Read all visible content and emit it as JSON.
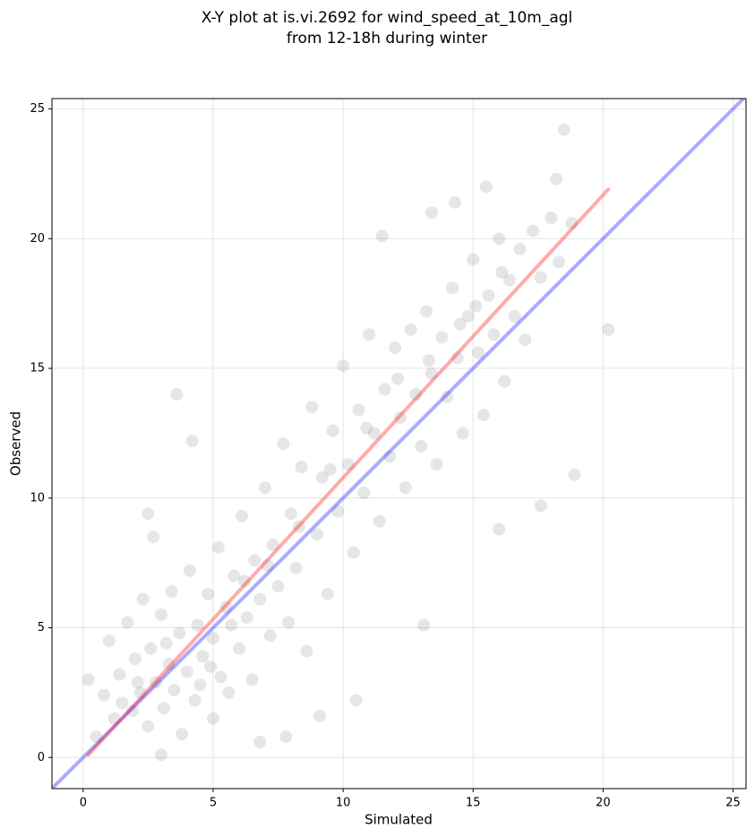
{
  "chart_data": {
    "type": "scatter",
    "title": [
      "X-Y plot at is.vi.2692 for wind_speed_at_10m_agl",
      "from 12-18h during winter"
    ],
    "x_label": "Simulated",
    "y_label": "Observed",
    "xlim": [
      -1.2,
      25.5
    ],
    "ylim": [
      -1.2,
      25.4
    ],
    "xticks": [
      0,
      5,
      10,
      15,
      20,
      25
    ],
    "yticks": [
      0,
      5,
      10,
      15,
      20,
      25
    ],
    "grid": true,
    "series": [
      {
        "color": "#555555",
        "x": [
          0.5,
          0.8,
          1,
          1.2,
          1.4,
          1.5,
          1.7,
          1.9,
          2,
          2.2,
          2.3,
          2.5,
          2.6,
          2.8,
          3,
          3.1,
          3.3,
          3.4,
          3.5,
          3.7,
          3.8,
          4,
          4.1,
          4.3,
          4.4,
          4.6,
          4.8,
          5,
          5,
          5.2,
          5.3,
          5.5,
          5.6,
          5.8,
          6,
          6.1,
          6.3,
          6.5,
          6.6,
          6.8,
          7,
          7.2,
          7.3,
          7.5,
          7.7,
          7.9,
          8,
          8.2,
          8.4,
          8.6,
          8.8,
          9,
          9.2,
          9.4,
          9.6,
          9.8,
          10,
          10.2,
          10.4,
          10.6,
          10.8,
          11,
          11.2,
          11.4,
          11.6,
          11.8,
          12,
          12.2,
          12.4,
          12.6,
          12.8,
          13,
          13.2,
          13.4,
          13.6,
          13.8,
          14,
          14.2,
          14.4,
          14.6,
          14.8,
          15,
          15.2,
          15.4,
          15.6,
          15.8,
          16,
          16.2,
          16.4,
          16.6,
          16.8,
          17,
          17.3,
          17.6,
          18,
          18.3,
          18.8,
          3.2,
          4.5,
          5.7,
          6.2,
          2.1,
          4.9,
          7.1,
          8.3,
          9.5,
          10.9,
          12.1,
          13.3,
          14.5,
          15.1,
          16.1,
          3.6,
          4.2,
          18.5,
          20.2,
          18.9,
          17.6,
          16,
          13.1,
          10.5,
          9.1,
          0.2,
          2.5,
          2.7,
          11.5,
          15.5,
          18.2,
          13.4,
          14.3,
          7.8,
          6.8,
          3
        ],
        "values": [
          0.8,
          2.4,
          4.5,
          1.5,
          3.2,
          2.1,
          5.2,
          1.8,
          3.8,
          2.5,
          6.1,
          1.2,
          4.2,
          2.9,
          5.5,
          1.9,
          3.6,
          6.4,
          2.6,
          4.8,
          0.9,
          3.3,
          7.2,
          2.2,
          5.1,
          3.9,
          6.3,
          1.5,
          4.6,
          8.1,
          3.1,
          5.8,
          2.5,
          7,
          4.2,
          9.3,
          5.4,
          3,
          7.6,
          6.1,
          10.4,
          4.7,
          8.2,
          6.6,
          12.1,
          5.2,
          9.4,
          7.3,
          11.2,
          4.1,
          13.5,
          8.6,
          10.8,
          6.3,
          12.6,
          9.5,
          15.1,
          11.3,
          7.9,
          13.4,
          10.2,
          16.3,
          12.5,
          9.1,
          14.2,
          11.6,
          15.8,
          13.1,
          10.4,
          16.5,
          14,
          12,
          17.2,
          14.8,
          11.3,
          16.2,
          13.9,
          18.1,
          15.4,
          12.5,
          17,
          19.2,
          15.6,
          13.2,
          17.8,
          16.3,
          20,
          14.5,
          18.4,
          17,
          19.6,
          16.1,
          20.3,
          18.5,
          20.8,
          19.1,
          20.6,
          4.4,
          2.8,
          5.1,
          6.8,
          2.9,
          3.5,
          7.4,
          8.9,
          11.1,
          12.7,
          14.6,
          15.3,
          16.7,
          17.4,
          18.7,
          14,
          12.2,
          24.2,
          16.5,
          10.9,
          9.7,
          8.8,
          5.1,
          2.2,
          1.6,
          3,
          9.4,
          8.5,
          20.1,
          22,
          22.3,
          21,
          21.4,
          0.8,
          0.6,
          0.1
        ]
      }
    ],
    "lines": [
      {
        "color": "#0000ff",
        "x": [
          -1.2,
          25.5
        ],
        "values": [
          -1.2,
          25.5
        ]
      },
      {
        "color": "#ff0000",
        "x": [
          0.2,
          20.2
        ],
        "values": [
          0.1,
          21.9
        ]
      }
    ]
  }
}
